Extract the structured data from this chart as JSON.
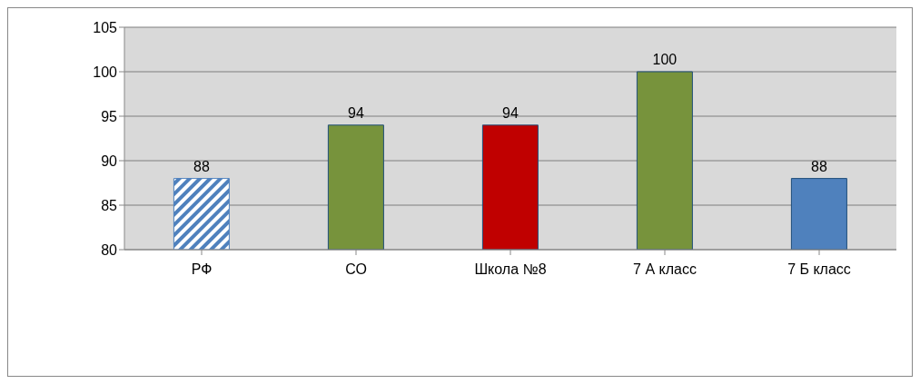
{
  "chart_data": {
    "type": "bar",
    "categories": [
      "РФ",
      "СО",
      "Школа №8",
      "7 А класс",
      "7 Б класс"
    ],
    "values": [
      88,
      94,
      94,
      100,
      88
    ],
    "colors": [
      "#4f81bd",
      "#77933c",
      "#c00000",
      "#77933c",
      "#4f81bd"
    ],
    "ylim": [
      80,
      105
    ],
    "yticks": [
      80,
      85,
      90,
      95,
      100,
      105
    ],
    "grid": "y",
    "data_labels": true,
    "legend": false
  }
}
